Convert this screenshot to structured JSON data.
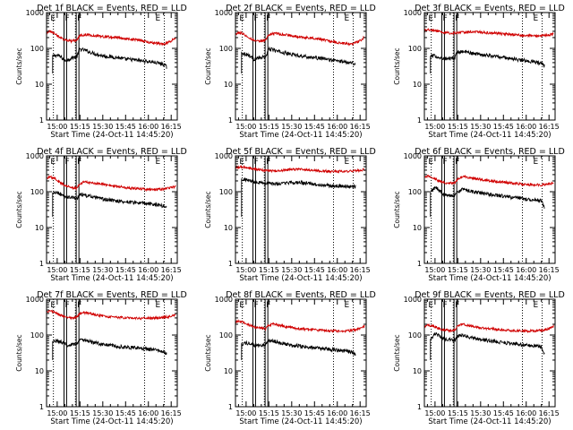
{
  "shared": {
    "xticks": [
      "15:00",
      "15:15",
      "15:30",
      "15:45",
      "16:00",
      "16:15"
    ],
    "xtick_values_min": [
      15,
      30,
      45,
      60,
      75,
      90
    ],
    "yticks": [
      {
        "label": "1000",
        "value": 1000
      },
      {
        "label": "100",
        "value": 100
      },
      {
        "label": "10",
        "value": 10
      },
      {
        "label": "1",
        "value": 1
      }
    ],
    "ylabel": "Counts/sec",
    "xlabel": "Start Time (24-Oct-11 14:45:20)",
    "xlim_minutes": [
      8,
      94
    ],
    "ylim": [
      1,
      1000
    ],
    "flag_labels": [
      "E",
      "F",
      "F",
      "E"
    ],
    "flag_minutes": [
      10,
      19.5,
      27.5,
      79
    ],
    "box_spans_minutes": [
      [
        19.5,
        21.2
      ],
      [
        27.5,
        29.3
      ]
    ],
    "dotted_minutes": [
      12.5,
      27,
      72.5,
      85.5
    ],
    "colors": {
      "events": "#000000",
      "lld": "#d00000",
      "axes": "#000000"
    }
  },
  "chart_data": [
    {
      "type": "line",
      "title": "Det 1f BLACK = Events, RED = LLD",
      "yscale": "log",
      "series": [
        {
          "key": "events",
          "x": [
            12,
            15,
            18,
            20,
            22,
            25,
            28,
            30,
            33,
            36,
            40,
            45,
            50,
            55,
            60,
            65,
            70,
            75,
            80,
            85,
            87
          ],
          "values": [
            60,
            65,
            55,
            45,
            48,
            55,
            60,
            95,
            90,
            80,
            70,
            62,
            58,
            55,
            50,
            48,
            45,
            43,
            40,
            36,
            30
          ]
        },
        {
          "key": "lld",
          "x": [
            8,
            10,
            13,
            16,
            20,
            24,
            28,
            30,
            33,
            36,
            40,
            45,
            50,
            55,
            60,
            65,
            70,
            75,
            80,
            85,
            90,
            93
          ],
          "values": [
            270,
            300,
            270,
            210,
            175,
            160,
            165,
            230,
            240,
            235,
            225,
            215,
            205,
            200,
            185,
            180,
            165,
            150,
            140,
            130,
            160,
            200
          ]
        }
      ]
    },
    {
      "type": "line",
      "title": "Det 2f BLACK = Events, RED = LLD",
      "yscale": "log",
      "series": [
        {
          "key": "events",
          "x": [
            12,
            15,
            18,
            20,
            22,
            25,
            28,
            30,
            33,
            36,
            40,
            45,
            50,
            55,
            60,
            65,
            70,
            75,
            80,
            85,
            87
          ],
          "values": [
            75,
            70,
            60,
            50,
            52,
            55,
            58,
            95,
            92,
            82,
            75,
            68,
            63,
            58,
            55,
            52,
            48,
            45,
            42,
            40,
            35
          ]
        },
        {
          "key": "lld",
          "x": [
            8,
            10,
            13,
            16,
            20,
            24,
            28,
            30,
            33,
            36,
            40,
            45,
            50,
            55,
            60,
            65,
            70,
            75,
            80,
            85,
            90,
            93
          ],
          "values": [
            250,
            280,
            260,
            210,
            170,
            160,
            170,
            240,
            260,
            255,
            240,
            225,
            210,
            200,
            190,
            175,
            160,
            145,
            135,
            130,
            160,
            210
          ]
        }
      ]
    },
    {
      "type": "line",
      "title": "Det 3f BLACK = Events, RED = LLD",
      "yscale": "log",
      "series": [
        {
          "key": "events",
          "x": [
            12,
            15,
            18,
            20,
            22,
            25,
            28,
            30,
            33,
            36,
            40,
            45,
            50,
            55,
            60,
            65,
            70,
            75,
            80,
            85,
            87
          ],
          "values": [
            60,
            62,
            55,
            50,
            52,
            53,
            55,
            80,
            82,
            78,
            72,
            68,
            64,
            60,
            56,
            52,
            48,
            45,
            42,
            38,
            32
          ]
        },
        {
          "key": "lld",
          "x": [
            8,
            12,
            16,
            20,
            25,
            30,
            35,
            40,
            45,
            50,
            55,
            60,
            65,
            70,
            75,
            80,
            85,
            90,
            93
          ],
          "values": [
            310,
            330,
            310,
            280,
            265,
            270,
            285,
            290,
            285,
            270,
            265,
            255,
            245,
            235,
            230,
            225,
            225,
            235,
            250
          ]
        }
      ]
    },
    {
      "type": "line",
      "title": "Det 4f BLACK = Events, RED = LLD",
      "yscale": "log",
      "series": [
        {
          "key": "events",
          "x": [
            12,
            15,
            18,
            20,
            22,
            25,
            28,
            30,
            33,
            36,
            40,
            45,
            50,
            55,
            60,
            65,
            70,
            75,
            80,
            85,
            87
          ],
          "values": [
            90,
            95,
            80,
            70,
            72,
            68,
            65,
            85,
            80,
            75,
            68,
            62,
            58,
            55,
            52,
            50,
            48,
            46,
            44,
            40,
            38
          ]
        },
        {
          "key": "lld",
          "x": [
            8,
            10,
            13,
            16,
            20,
            24,
            28,
            30,
            33,
            36,
            40,
            45,
            50,
            55,
            60,
            65,
            70,
            75,
            80,
            85,
            90,
            93
          ],
          "values": [
            230,
            260,
            240,
            190,
            150,
            130,
            125,
            170,
            190,
            180,
            170,
            160,
            150,
            140,
            130,
            125,
            120,
            115,
            115,
            120,
            130,
            140
          ]
        }
      ]
    },
    {
      "type": "line",
      "title": "Det 5f BLACK = Events, RED = LLD",
      "yscale": "log",
      "series": [
        {
          "key": "events",
          "x": [
            12,
            15,
            20,
            25,
            30,
            35,
            40,
            45,
            50,
            55,
            60,
            65,
            70,
            75,
            80,
            85,
            87
          ],
          "values": [
            225,
            215,
            195,
            180,
            170,
            165,
            170,
            180,
            180,
            170,
            160,
            152,
            148,
            145,
            142,
            140,
            140
          ]
        },
        {
          "key": "lld",
          "x": [
            8,
            12,
            16,
            20,
            25,
            30,
            35,
            40,
            45,
            50,
            55,
            60,
            65,
            70,
            75,
            80,
            85,
            90,
            93
          ],
          "values": [
            470,
            490,
            470,
            430,
            400,
            380,
            380,
            400,
            420,
            420,
            410,
            390,
            380,
            370,
            370,
            370,
            380,
            390,
            410
          ]
        }
      ]
    },
    {
      "type": "line",
      "title": "Det 6f BLACK = Events, RED = LLD",
      "yscale": "log",
      "series": [
        {
          "key": "events",
          "x": [
            12,
            15,
            18,
            20,
            22,
            25,
            28,
            30,
            33,
            36,
            40,
            45,
            50,
            55,
            60,
            65,
            70,
            75,
            80,
            85,
            87
          ],
          "values": [
            95,
            130,
            110,
            85,
            80,
            78,
            80,
            100,
            115,
            110,
            100,
            92,
            85,
            80,
            75,
            70,
            66,
            62,
            60,
            55,
            35
          ]
        },
        {
          "key": "lld",
          "x": [
            8,
            10,
            13,
            16,
            20,
            24,
            28,
            30,
            33,
            36,
            40,
            45,
            50,
            55,
            60,
            65,
            70,
            75,
            80,
            85,
            90,
            93
          ],
          "values": [
            240,
            270,
            255,
            215,
            185,
            170,
            175,
            230,
            265,
            255,
            240,
            220,
            205,
            195,
            185,
            175,
            165,
            160,
            155,
            155,
            165,
            180
          ]
        }
      ]
    },
    {
      "type": "line",
      "title": "Det 7f BLACK = Events, RED = LLD",
      "yscale": "log",
      "series": [
        {
          "key": "events",
          "x": [
            12,
            15,
            18,
            20,
            22,
            25,
            28,
            30,
            33,
            36,
            40,
            45,
            50,
            55,
            60,
            65,
            70,
            75,
            80,
            85,
            87
          ],
          "values": [
            65,
            70,
            62,
            55,
            52,
            55,
            58,
            75,
            72,
            66,
            60,
            55,
            52,
            48,
            46,
            44,
            42,
            40,
            38,
            34,
            30
          ]
        },
        {
          "key": "lld",
          "x": [
            8,
            10,
            13,
            16,
            20,
            24,
            28,
            30,
            33,
            36,
            40,
            45,
            50,
            55,
            60,
            65,
            70,
            75,
            80,
            85,
            90,
            93
          ],
          "values": [
            450,
            470,
            430,
            380,
            320,
            300,
            310,
            400,
            420,
            400,
            370,
            340,
            320,
            310,
            300,
            295,
            290,
            295,
            300,
            310,
            330,
            370
          ]
        }
      ]
    },
    {
      "type": "line",
      "title": "Det 8f BLACK = Events, RED = LLD",
      "yscale": "log",
      "series": [
        {
          "key": "events",
          "x": [
            12,
            15,
            18,
            20,
            22,
            25,
            28,
            30,
            33,
            36,
            40,
            45,
            50,
            55,
            60,
            65,
            70,
            75,
            80,
            85,
            87
          ],
          "values": [
            55,
            60,
            55,
            50,
            50,
            52,
            55,
            70,
            68,
            62,
            58,
            52,
            50,
            46,
            44,
            42,
            40,
            38,
            36,
            33,
            28
          ]
        },
        {
          "key": "lld",
          "x": [
            8,
            10,
            13,
            16,
            20,
            24,
            28,
            30,
            33,
            36,
            40,
            45,
            50,
            55,
            60,
            65,
            70,
            75,
            80,
            85,
            90,
            93
          ],
          "values": [
            220,
            250,
            230,
            200,
            170,
            155,
            150,
            190,
            200,
            190,
            175,
            160,
            150,
            145,
            140,
            135,
            130,
            130,
            130,
            135,
            150,
            175
          ]
        }
      ]
    },
    {
      "type": "line",
      "title": "Det 9f BLACK = Events, RED = LLD",
      "yscale": "log",
      "series": [
        {
          "key": "events",
          "x": [
            12,
            15,
            18,
            20,
            22,
            25,
            28,
            30,
            33,
            36,
            40,
            45,
            50,
            55,
            60,
            65,
            70,
            75,
            80,
            85,
            87
          ],
          "values": [
            75,
            110,
            95,
            80,
            78,
            74,
            72,
            92,
            98,
            90,
            82,
            75,
            70,
            66,
            62,
            58,
            55,
            52,
            50,
            46,
            30
          ]
        },
        {
          "key": "lld",
          "x": [
            8,
            10,
            13,
            16,
            20,
            24,
            28,
            30,
            33,
            36,
            40,
            45,
            50,
            55,
            60,
            65,
            70,
            75,
            80,
            85,
            90,
            93
          ],
          "values": [
            160,
            190,
            180,
            160,
            140,
            135,
            140,
            175,
            200,
            190,
            175,
            160,
            150,
            145,
            140,
            135,
            130,
            130,
            130,
            135,
            150,
            180
          ]
        }
      ]
    }
  ]
}
